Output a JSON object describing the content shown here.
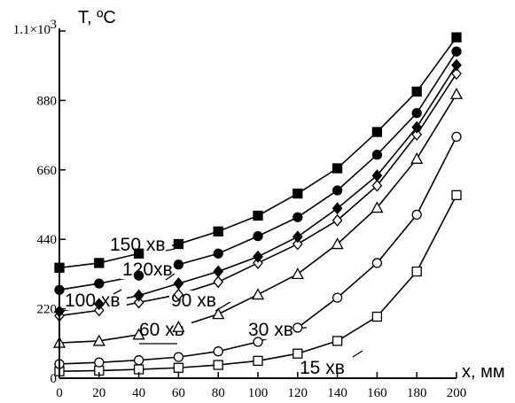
{
  "chart_data": {
    "type": "line",
    "title": "",
    "ylabel": "T, ºC",
    "xlabel": "x, мм",
    "xlim": [
      0,
      200
    ],
    "ylim": [
      0,
      1100
    ],
    "grid": false,
    "x_ticks": [
      0,
      20,
      40,
      60,
      80,
      100,
      120,
      140,
      160,
      180,
      200
    ],
    "y_ticks": [
      {
        "value": 0,
        "label": "0"
      },
      {
        "value": 220,
        "label": "220"
      },
      {
        "value": 440,
        "label": "440"
      },
      {
        "value": 660,
        "label": "660"
      },
      {
        "value": 880,
        "label": "880"
      },
      {
        "value": 1100,
        "label": "1.1×10",
        "sup": "3"
      }
    ],
    "x": [
      0,
      20,
      40,
      60,
      80,
      100,
      120,
      140,
      160,
      180,
      200
    ],
    "series": [
      {
        "name": "15 хв",
        "marker": "square-open",
        "values": [
          22,
          24,
          28,
          33,
          42,
          55,
          78,
          118,
          195,
          338,
          580
        ]
      },
      {
        "name": "30 хв",
        "marker": "circle-open",
        "values": [
          45,
          50,
          57,
          67,
          85,
          115,
          160,
          255,
          365,
          518,
          765
        ]
      },
      {
        "name": "60 хв",
        "marker": "triangle-open",
        "values": [
          112,
          118,
          138,
          162,
          203,
          265,
          330,
          425,
          540,
          695,
          900
        ]
      },
      {
        "name": "90 хв",
        "marker": "diamond-open",
        "values": [
          198,
          215,
          240,
          265,
          305,
          365,
          425,
          500,
          610,
          772,
          965
        ]
      },
      {
        "name": "100 хв",
        "marker": "diamond-filled",
        "values": [
          212,
          235,
          262,
          300,
          338,
          385,
          448,
          538,
          642,
          795,
          992
        ]
      },
      {
        "name": "120хв",
        "marker": "circle-filled",
        "values": [
          280,
          300,
          325,
          360,
          395,
          450,
          510,
          595,
          708,
          840,
          1035
        ]
      },
      {
        "name": "150 хв",
        "marker": "square-filled",
        "values": [
          350,
          365,
          395,
          425,
          465,
          515,
          585,
          665,
          780,
          908,
          1080
        ]
      }
    ]
  }
}
